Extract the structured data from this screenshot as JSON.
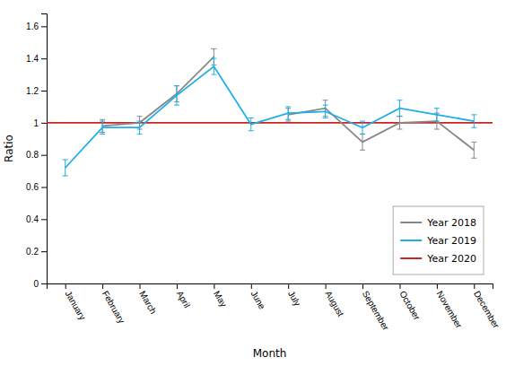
{
  "chart_data": {
    "type": "line",
    "xlabel": "Month",
    "ylabel": "Ratio",
    "categories": [
      "January",
      "February",
      "March",
      "April",
      "May",
      "June",
      "July",
      "August",
      "September",
      "October",
      "November",
      "December"
    ],
    "series": [
      {
        "name": "Year 2018",
        "color": "#888888",
        "values": [
          null,
          0.98,
          1.0,
          1.18,
          1.41,
          null,
          1.05,
          1.09,
          0.88,
          1.0,
          1.01,
          0.83
        ],
        "yerr_lo": [
          null,
          0.04,
          0.04,
          0.05,
          0.05,
          null,
          0.04,
          0.05,
          0.05,
          0.04,
          0.05,
          0.05
        ],
        "yerr_hi": [
          null,
          0.04,
          0.04,
          0.05,
          0.05,
          null,
          0.04,
          0.05,
          0.05,
          0.04,
          0.05,
          0.05
        ]
      },
      {
        "name": "Year 2019",
        "color": "#1EAEE8",
        "values": [
          0.72,
          0.97,
          0.97,
          1.17,
          1.35,
          0.99,
          1.06,
          1.07,
          0.97,
          1.09,
          1.05,
          1.01
        ],
        "yerr_lo": [
          0.05,
          0.04,
          0.04,
          0.06,
          0.05,
          0.04,
          0.04,
          0.04,
          0.04,
          0.05,
          0.04,
          0.04
        ],
        "yerr_hi": [
          0.05,
          0.04,
          0.04,
          0.06,
          0.05,
          0.04,
          0.04,
          0.04,
          0.04,
          0.05,
          0.04,
          0.04
        ]
      },
      {
        "name": "Year 2020",
        "color": "#CC2222",
        "type": "hline",
        "value": 1.0
      }
    ],
    "ylim": [
      0,
      1.68
    ],
    "yticks": [
      0,
      0.2,
      0.4,
      0.6,
      0.8,
      1,
      1.2,
      1.4,
      1.6
    ],
    "grid": false,
    "legend": "lower right"
  }
}
